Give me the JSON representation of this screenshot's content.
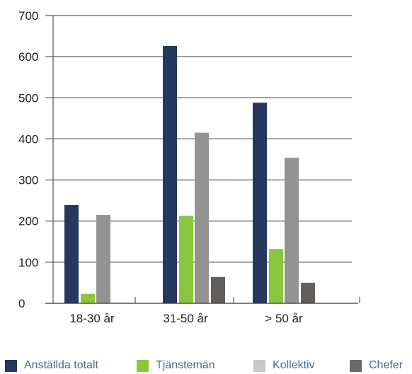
{
  "chart_data": {
    "type": "bar",
    "categories": [
      "18-30 år",
      "31-50 år",
      "> 50 år"
    ],
    "series": [
      {
        "name": "Anställda totalt",
        "values": [
          239,
          626,
          488
        ],
        "color": "#26385f"
      },
      {
        "name": "Tjänstemän",
        "values": [
          23,
          213,
          132
        ],
        "color": "#8cc63f"
      },
      {
        "name": "Kollektiv",
        "values": [
          215,
          415,
          354
        ],
        "color": "#939393"
      },
      {
        "name": "Chefer",
        "values": [
          1,
          64,
          50
        ],
        "color": "#615e5c"
      }
    ],
    "yticks": [
      "0",
      "100",
      "200",
      "300",
      "400",
      "500",
      "600",
      "700"
    ],
    "ylim": [
      0,
      700
    ],
    "legend_colors": [
      "#26385f",
      "#8cc63f",
      "#c8c8c8",
      "#6d6b69"
    ],
    "grid": true,
    "legend_position": "bottom"
  }
}
